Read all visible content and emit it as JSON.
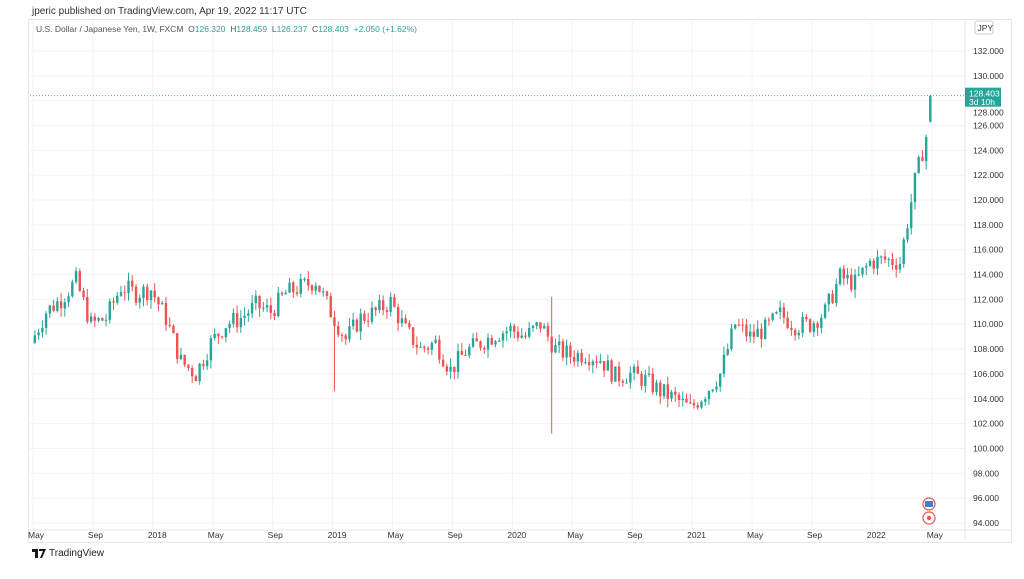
{
  "publisher_line": "jperic published on TradingView.com, Apr 19, 2022 11:17 UTC",
  "legend": {
    "symbol": "U.S. Dollar / Japanese Yen, 1W, FXCM",
    "o_label": "O",
    "o": "126.320",
    "h_label": "H",
    "h": "128.459",
    "l_label": "L",
    "l": "126.237",
    "c_label": "C",
    "c": "128.403",
    "change": "+2.050 (+1.62%)"
  },
  "currency_badge": "JPY",
  "price_tag": {
    "price": "128.403",
    "countdown": "3d 10h"
  },
  "brand": "TradingView",
  "colors": {
    "up": "#26a69a",
    "down": "#ef5350",
    "grid": "#f0f3fa"
  },
  "chart_data": {
    "type": "candlestick",
    "title": "U.S. Dollar / Japanese Yen, 1W, FXCM",
    "ylim": [
      93,
      134
    ],
    "y_ticks": [
      "132.000",
      "130.000",
      "128.000",
      "126.000",
      "124.000",
      "122.000",
      "120.000",
      "118.000",
      "116.000",
      "114.000",
      "112.000",
      "110.000",
      "108.000",
      "106.000",
      "104.000",
      "102.000",
      "100.000",
      "98.000",
      "96.000",
      "94.000"
    ],
    "x_ticks": [
      {
        "label": "May",
        "month": 0
      },
      {
        "label": "Sep",
        "month": 4
      },
      {
        "label": "2018",
        "month": 8
      },
      {
        "label": "May",
        "month": 12
      },
      {
        "label": "Sep",
        "month": 16
      },
      {
        "label": "2019",
        "month": 20
      },
      {
        "label": "May",
        "month": 24
      },
      {
        "label": "Sep",
        "month": 28
      },
      {
        "label": "2020",
        "month": 32
      },
      {
        "label": "May",
        "month": 36
      },
      {
        "label": "Sep",
        "month": 40
      },
      {
        "label": "2021",
        "month": 44
      },
      {
        "label": "May",
        "month": 48
      },
      {
        "label": "Sep",
        "month": 52
      },
      {
        "label": "2022",
        "month": 56
      },
      {
        "label": "May",
        "month": 60
      }
    ],
    "start_value": 108.5,
    "monthly_closes": [
      111,
      112,
      113.5,
      110,
      110.5,
      113,
      112.5,
      112.8,
      110.5,
      107,
      106,
      108.5,
      110,
      110.5,
      111.5,
      111,
      112.5,
      113,
      113.5,
      111,
      108.8,
      110.5,
      111,
      111.8,
      109.5,
      108,
      108.5,
      106.3,
      107.8,
      108.5,
      109.2,
      109.6,
      109,
      110,
      108,
      107.5,
      107.6,
      107.2,
      105.8,
      106,
      105.5,
      104.6,
      104,
      103.2,
      104.5,
      106,
      110,
      109,
      109.6,
      110.8,
      109.9,
      110,
      111,
      113.8,
      113.3,
      115,
      115.2,
      115,
      121.5,
      126.32
    ],
    "last_candle": {
      "open": 126.32,
      "high": 128.459,
      "low": 126.237,
      "close": 128.403
    },
    "notable_wicks": [
      {
        "month": 20,
        "low": 104.6
      },
      {
        "month": 34.5,
        "low": 101.2,
        "high": 112.2
      }
    ]
  }
}
